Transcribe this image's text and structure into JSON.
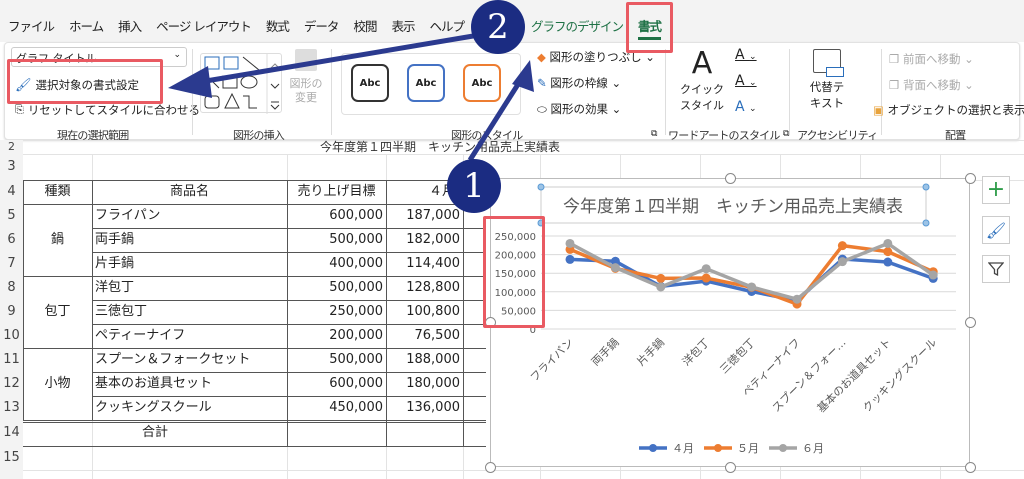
{
  "tabs": [
    "ファイル",
    "ホーム",
    "挿入",
    "ページ レイアウト",
    "数式",
    "データ",
    "校閲",
    "表示",
    "ヘルプ",
    "グラフのデザイン",
    "書式"
  ],
  "active_tab": "書式",
  "ribbon": {
    "current_selection": {
      "dropdown_value": "グラフ タイトル",
      "format_selection": "選択対象の書式設定",
      "reset_style": "リセットしてスタイルに合わせる",
      "label": "現在の選択範囲"
    },
    "insert_shapes": {
      "change_shape": "図形の変更",
      "label": "図形の挿入"
    },
    "shape_styles": {
      "samples": [
        "Abc",
        "Abc",
        "Abc"
      ],
      "fill": "図形の塗りつぶし",
      "outline": "図形の枠線",
      "effects": "図形の効果",
      "label": "図形のスタイル"
    },
    "wordart": {
      "quick_style_1": "クイック",
      "quick_style_2": "スタイル",
      "label": "ワードアートのスタイル"
    },
    "accessibility": {
      "alt_text_1": "代替テ",
      "alt_text_2": "キスト",
      "label": "アクセシビリティ"
    },
    "arrange": {
      "bring_forward": "前面へ移動",
      "send_backward": "背面へ移動",
      "selection_pane": "オブジェクトの選択と表示",
      "label": "配置"
    }
  },
  "sheet": {
    "row2_text": "今年度第１四半期　キッチン用品売上実績表",
    "row_numbers": [
      "2",
      "3",
      "4",
      "5",
      "6",
      "7",
      "8",
      "9",
      "10",
      "11",
      "12",
      "13",
      "14",
      "15"
    ],
    "headers": [
      "種類",
      "商品名",
      "売り上げ目標",
      "４月"
    ],
    "groups": [
      "鍋",
      "包丁",
      "小物"
    ],
    "rows": [
      {
        "name": "フライパン",
        "target": "600,000",
        "apr": "187,000"
      },
      {
        "name": "両手鍋",
        "target": "500,000",
        "apr": "182,000"
      },
      {
        "name": "片手鍋",
        "target": "400,000",
        "apr": "114,400"
      },
      {
        "name": "洋包丁",
        "target": "500,000",
        "apr": "128,800"
      },
      {
        "name": "三徳包丁",
        "target": "250,000",
        "apr": "100,800"
      },
      {
        "name": "ペティーナイフ",
        "target": "200,000",
        "apr": "76,500"
      },
      {
        "name": "スプーン＆フォークセット",
        "target": "500,000",
        "apr": "188,000"
      },
      {
        "name": "基本のお道具セット",
        "target": "600,000",
        "apr": "180,000"
      },
      {
        "name": "クッキングスクール",
        "target": "450,000",
        "apr": "136,000"
      }
    ],
    "total_label": "合計"
  },
  "chart_data": {
    "type": "line",
    "title": "今年度第１四半期　キッチン用品売上実績表",
    "categories": [
      "フライパン",
      "両手鍋",
      "片手鍋",
      "洋包丁",
      "三徳包丁",
      "ペティーナイフ",
      "スプーン＆フォー…",
      "基本のお道具セット",
      "クッキングスクール"
    ],
    "yticks": [
      "0",
      "50,000",
      "100,000",
      "150,000",
      "200,000",
      "250,000"
    ],
    "ylim": [
      0,
      250000
    ],
    "grid": true,
    "legend_position": "bottom",
    "series": [
      {
        "name": "４月",
        "color": "#4472c4",
        "values": [
          187000,
          182000,
          114400,
          128800,
          100800,
          76500,
          188000,
          180000,
          136000
        ]
      },
      {
        "name": "５月",
        "color": "#ed7d31",
        "values": [
          214000,
          163000,
          136000,
          137000,
          112000,
          67000,
          224000,
          208000,
          154000
        ]
      },
      {
        "name": "６月",
        "color": "#a5a5a5",
        "values": [
          230000,
          165000,
          113000,
          162000,
          113000,
          80000,
          181000,
          230000,
          145000
        ]
      }
    ]
  },
  "annotations": {
    "step1": "1",
    "step2": "2",
    "color": "#1b2c82",
    "highlight": "#e95a62"
  },
  "side_buttons": [
    "plus-icon",
    "brush-icon",
    "filter-icon"
  ]
}
